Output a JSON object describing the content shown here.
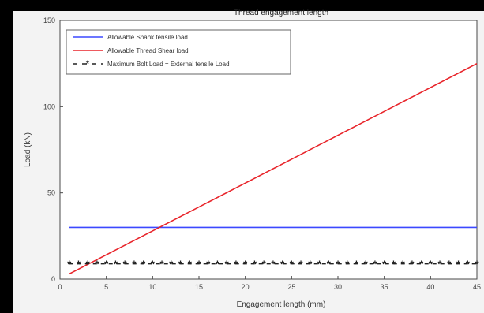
{
  "chart_data": {
    "type": "line",
    "title": "Thread engagement length",
    "xlabel": "Engagement length (mm)",
    "ylabel": "Load (kN)",
    "xlim": [
      0,
      45
    ],
    "ylim": [
      0,
      150
    ],
    "x_ticks": [
      0,
      5,
      10,
      15,
      20,
      25,
      30,
      35,
      40,
      45
    ],
    "y_ticks": [
      0,
      50,
      100,
      150
    ],
    "grid": false,
    "legend_position": "top-left",
    "series": [
      {
        "name": "Allowable Shank tensile load",
        "color": "#3b49ff",
        "style": "solid",
        "x": [
          1,
          45
        ],
        "y": [
          30,
          30
        ]
      },
      {
        "name": "Allowable Thread Shear load",
        "color": "#e8242a",
        "style": "solid",
        "x": [
          1,
          45
        ],
        "y": [
          3,
          125
        ]
      },
      {
        "name": "Maximum Bolt Load = External tensile Load",
        "color": "#222222",
        "style": "dashed-star",
        "x": [
          1,
          45
        ],
        "y": [
          9,
          9
        ]
      }
    ]
  }
}
